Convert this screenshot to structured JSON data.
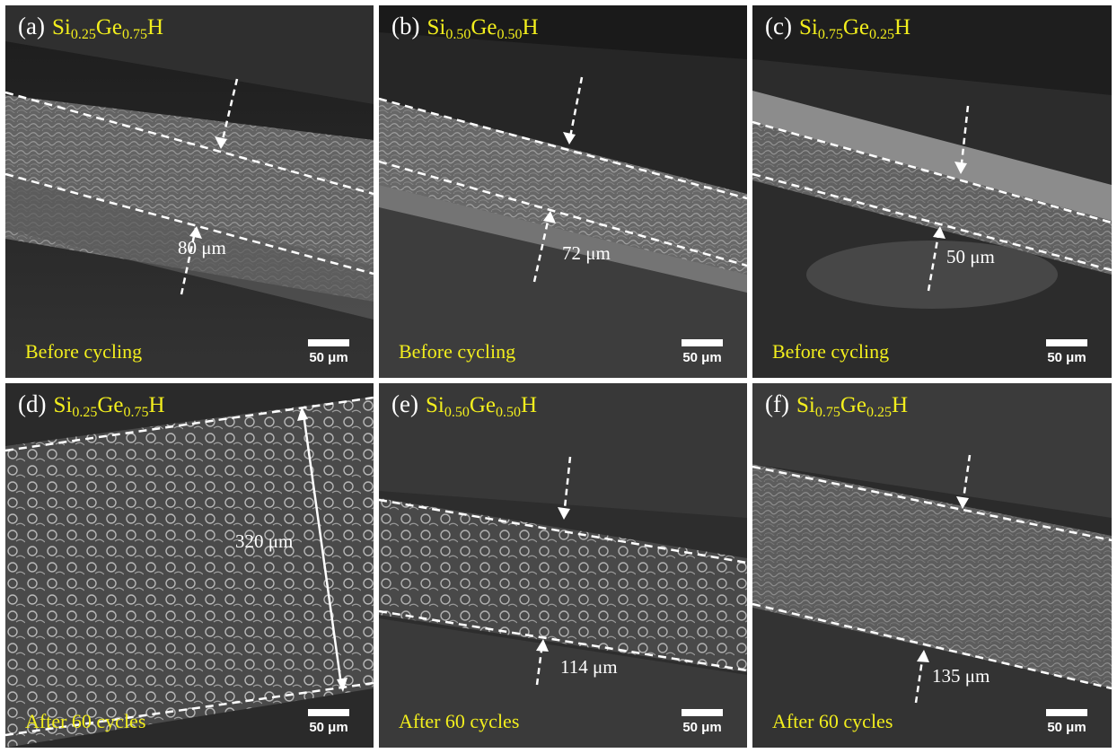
{
  "panels": [
    {
      "letter": "(a)",
      "si": "0.25",
      "ge": "0.75",
      "state": "Before cycling",
      "thickness": "80 μm",
      "scale": "50 μm"
    },
    {
      "letter": "(b)",
      "si": "0.50",
      "ge": "0.50",
      "state": "Before cycling",
      "thickness": "72 μm",
      "scale": "50 μm"
    },
    {
      "letter": "(c)",
      "si": "0.75",
      "ge": "0.25",
      "state": "Before cycling",
      "thickness": "50 μm",
      "scale": "50 μm"
    },
    {
      "letter": "(d)",
      "si": "0.25",
      "ge": "0.75",
      "state": "After 60 cycles",
      "thickness": "320 μm",
      "scale": "50 μm"
    },
    {
      "letter": "(e)",
      "si": "0.50",
      "ge": "0.50",
      "state": "After 60 cycles",
      "thickness": "114 μm",
      "scale": "50 μm"
    },
    {
      "letter": "(f)",
      "si": "0.75",
      "ge": "0.25",
      "state": "After 60 cycles",
      "thickness": "135 μm",
      "scale": "50 μm"
    }
  ],
  "colors": {
    "label_yellow": "#f2ee1d",
    "annotation": "#ffffff",
    "background": "#ffffff"
  }
}
